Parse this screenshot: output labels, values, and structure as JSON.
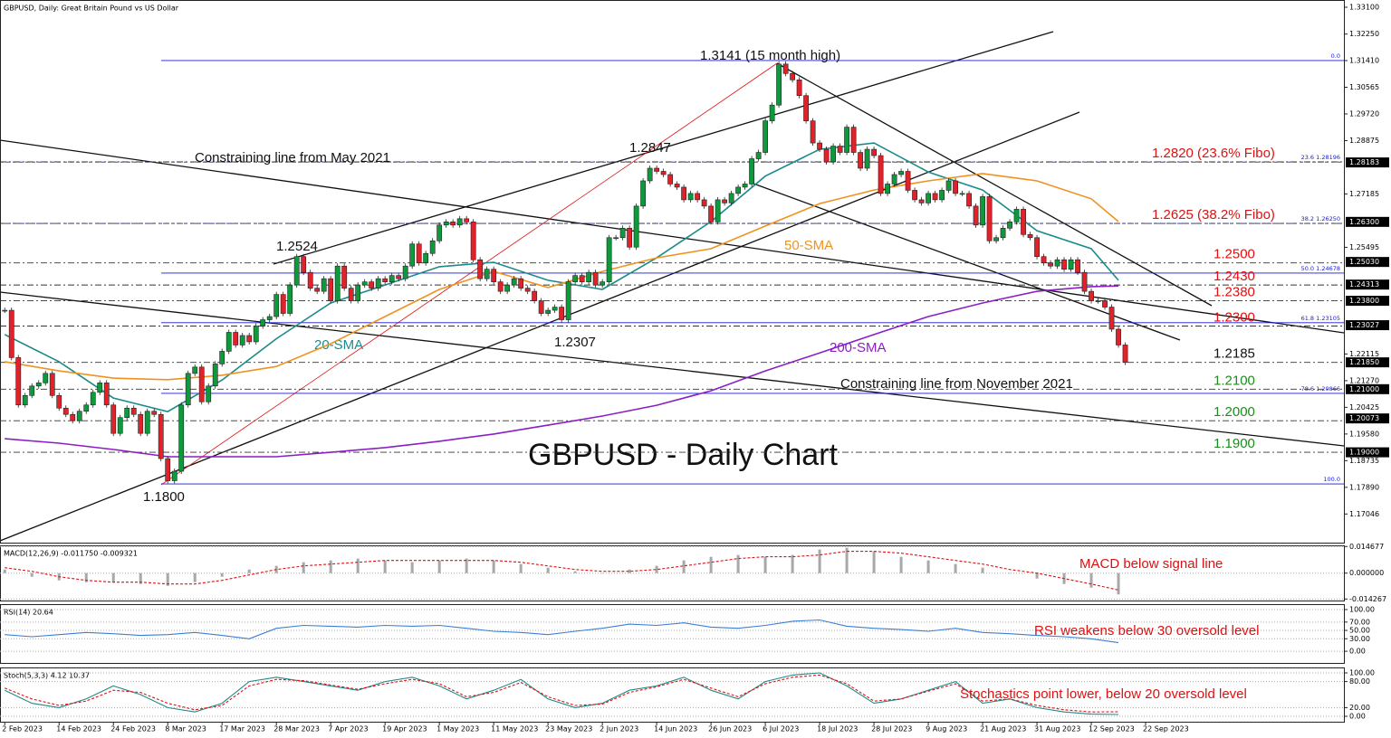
{
  "chart_data": [
    {
      "type": "candlestick",
      "header": "GBPUSD, Daily:  Great Britain Pound vs US Dollar",
      "title": "GBPUSD - Daily Chart",
      "up_color": "#0e9a3c",
      "down_color": "#e0222a",
      "values": [
        1.235,
        1.22,
        1.205,
        1.208,
        1.211,
        1.212,
        1.215,
        1.208,
        1.204,
        1.202,
        1.2,
        1.203,
        1.205,
        1.209,
        1.212,
        1.205,
        1.196,
        1.201,
        1.204,
        1.202,
        1.196,
        1.203,
        1.202,
        1.188,
        1.181,
        1.184,
        1.205,
        1.215,
        1.217,
        1.206,
        1.211,
        1.218,
        1.222,
        1.228,
        1.224,
        1.227,
        1.225,
        1.23,
        1.232,
        1.233,
        1.24,
        1.234,
        1.243,
        1.252,
        1.247,
        1.242,
        1.241,
        1.245,
        1.238,
        1.249,
        1.242,
        1.238,
        1.243,
        1.244,
        1.242,
        1.245,
        1.244,
        1.246,
        1.245,
        1.249,
        1.256,
        1.25,
        1.253,
        1.257,
        1.262,
        1.263,
        1.262,
        1.264,
        1.263,
        1.251,
        1.245,
        1.248,
        1.244,
        1.241,
        1.243,
        1.245,
        1.242,
        1.241,
        1.238,
        1.234,
        1.235,
        1.236,
        1.232,
        1.244,
        1.246,
        1.244,
        1.247,
        1.243,
        1.244,
        1.258,
        1.258,
        1.261,
        1.255,
        1.268,
        1.276,
        1.28,
        1.279,
        1.278,
        1.275,
        1.274,
        1.27,
        1.272,
        1.27,
        1.268,
        1.263,
        1.27,
        1.269,
        1.272,
        1.274,
        1.275,
        1.283,
        1.285,
        1.295,
        1.3,
        1.313,
        1.31,
        1.308,
        1.303,
        1.295,
        1.288,
        1.286,
        1.282,
        1.287,
        1.285,
        1.293,
        1.285,
        1.28,
        1.286,
        1.284,
        1.272,
        1.275,
        1.278,
        1.279,
        1.273,
        1.27,
        1.269,
        1.272,
        1.27,
        1.273,
        1.276,
        1.272,
        1.272,
        1.268,
        1.262,
        1.271,
        1.257,
        1.258,
        1.261,
        1.263,
        1.267,
        1.259,
        1.258,
        1.252,
        1.25,
        1.249,
        1.251,
        1.248,
        1.251,
        1.247,
        1.241,
        1.238,
        1.238,
        1.236,
        1.229,
        1.224,
        1.2185
      ],
      "xlim": [
        -0.7,
        197.2
      ],
      "ylim": [
        1.16138,
        1.33329
      ],
      "xticks": [
        {
          "value": 0,
          "label": "2 Feb 2023"
        },
        {
          "value": 8,
          "label": "14 Feb 2023"
        },
        {
          "value": 16,
          "label": "24 Feb 2023"
        },
        {
          "value": 24,
          "label": "8 Mar 2023"
        },
        {
          "value": 32,
          "label": "17 Mar 2023"
        },
        {
          "value": 40,
          "label": "28 Mar 2023"
        },
        {
          "value": 48,
          "label": "7 Apr 2023"
        },
        {
          "value": 56,
          "label": "19 Apr 2023"
        },
        {
          "value": 64,
          "label": "1 May 2023"
        },
        {
          "value": 72,
          "label": "11 May 2023"
        },
        {
          "value": 80,
          "label": "23 May 2023"
        },
        {
          "value": 88,
          "label": "2 Jun 2023"
        },
        {
          "value": 96,
          "label": "14 Jun 2023"
        },
        {
          "value": 104,
          "label": "26 Jun 2023"
        },
        {
          "value": 112,
          "label": "6 Jul 2023"
        },
        {
          "value": 120,
          "label": "18 Jul 2023"
        },
        {
          "value": 128,
          "label": "28 Jul 2023"
        },
        {
          "value": 136,
          "label": "9 Aug 2023"
        },
        {
          "value": 144,
          "label": "21 Aug 2023"
        },
        {
          "value": 152,
          "label": "31 Aug 2023"
        },
        {
          "value": 160,
          "label": "12 Sep 2023"
        },
        {
          "value": 168,
          "label": "22 Sep 2023"
        }
      ],
      "yticks": [
        {
          "value": 1.331,
          "label": "1.33100"
        },
        {
          "value": 1.3225,
          "label": "1.32250"
        },
        {
          "value": 1.3141,
          "label": "1.31410"
        },
        {
          "value": 1.30565,
          "label": "1.30565"
        },
        {
          "value": 1.2972,
          "label": "1.29720"
        },
        {
          "value": 1.28875,
          "label": "1.28875"
        },
        {
          "value": 1.27185,
          "label": "1.27185"
        },
        {
          "value": 1.25495,
          "label": "1.25495"
        },
        {
          "value": 1.22115,
          "label": "1.22115"
        },
        {
          "value": 1.2127,
          "label": "1.21270"
        },
        {
          "value": 1.20425,
          "label": "1.20425"
        },
        {
          "value": 1.1958,
          "label": "1.19580"
        },
        {
          "value": 1.18735,
          "label": "1.18735"
        },
        {
          "value": 1.1789,
          "label": "1.17890"
        },
        {
          "value": 1.17046,
          "label": "1.17046"
        }
      ],
      "price_tags": [
        {
          "value": 1.28183,
          "label": "1.28183"
        },
        {
          "value": 1.263,
          "label": "1.26300"
        },
        {
          "value": 1.2503,
          "label": "1.25030"
        },
        {
          "value": 1.24313,
          "label": "1.24313"
        },
        {
          "value": 1.238,
          "label": "1.23800"
        },
        {
          "value": 1.23027,
          "label": "1.23027"
        },
        {
          "value": 1.2185,
          "label": "1.21850"
        },
        {
          "value": 1.21,
          "label": "1.21000"
        },
        {
          "value": 1.20073,
          "label": "1.20073"
        },
        {
          "value": 1.19,
          "label": "1.19000"
        }
      ],
      "fib_levels": [
        {
          "value": 1.3141,
          "tag": "0.0",
          "style": "solid"
        },
        {
          "value": 1.28196,
          "tag": "23.6 1.28196",
          "style": "dash"
        },
        {
          "value": 1.2625,
          "tag": "38.2 1.26250",
          "style": "dash"
        },
        {
          "value": 1.24678,
          "tag": "50.0 1.24678",
          "style": "solid"
        },
        {
          "value": 1.23105,
          "tag": "61.8 1.23105",
          "style": "solid"
        },
        {
          "value": 1.20866,
          "tag": "78.6 1.20866",
          "style": "solid"
        },
        {
          "value": 1.18,
          "tag": "100.0",
          "style": "solid"
        }
      ],
      "fib_color": "#1a1ad0",
      "levels": [
        {
          "value": 1.282,
          "label": "1.2820 (23.6% Fibo)",
          "color": "#e01010"
        },
        {
          "value": 1.2625,
          "label": "1.2625 (38.2% Fibo)",
          "color": "#e01010"
        },
        {
          "value": 1.25,
          "label": "1.2500",
          "color": "#e01010"
        },
        {
          "value": 1.243,
          "label": "1.2430",
          "color": "#e01010"
        },
        {
          "value": 1.238,
          "label": "1.2380",
          "color": "#e01010"
        },
        {
          "value": 1.23,
          "label": "1.2300",
          "color": "#e01010"
        },
        {
          "value": 1.2185,
          "label": "1.2185",
          "color": "#111111"
        },
        {
          "value": 1.21,
          "label": "1.2100",
          "color": "#1f8a1f"
        },
        {
          "value": 1.2,
          "label": "1.2000",
          "color": "#1f8a1f"
        },
        {
          "value": 1.19,
          "label": "1.1900",
          "color": "#1f8a1f"
        }
      ],
      "lines": [
        {
          "name": "20-SMA",
          "color": "#1d8a8a",
          "x": [
            0,
            8,
            16,
            24,
            32,
            40,
            48,
            56,
            64,
            72,
            80,
            88,
            96,
            104,
            112,
            120,
            128,
            136,
            144,
            152,
            160,
            164
          ],
          "values": [
            1.2273,
            1.2187,
            1.2072,
            1.2029,
            1.2129,
            1.226,
            1.2373,
            1.243,
            1.2488,
            1.2502,
            1.2445,
            1.2416,
            1.2516,
            1.2631,
            1.2775,
            1.286,
            1.288,
            1.2788,
            1.2731,
            1.2602,
            1.2545,
            1.2445
          ]
        },
        {
          "name": "50-SMA",
          "color": "#f0921e",
          "x": [
            0,
            8,
            16,
            24,
            32,
            40,
            48,
            56,
            64,
            72,
            80,
            88,
            96,
            104,
            112,
            120,
            128,
            136,
            144,
            152,
            160,
            164
          ],
          "values": [
            1.2187,
            1.2158,
            1.2135,
            1.213,
            1.2144,
            1.2172,
            1.2244,
            1.233,
            1.2416,
            1.2473,
            1.2422,
            1.2473,
            1.2516,
            1.2545,
            1.2617,
            1.2688,
            1.2731,
            1.276,
            1.2783,
            1.276,
            1.2703,
            1.2631
          ]
        },
        {
          "name": "200-SMA",
          "color": "#8a1fc4",
          "x": [
            0,
            8,
            16,
            24,
            32,
            40,
            48,
            56,
            64,
            72,
            80,
            88,
            96,
            104,
            112,
            120,
            128,
            136,
            144,
            152,
            160,
            164
          ],
          "values": [
            1.1943,
            1.1929,
            1.1909,
            1.1886,
            1.1886,
            1.1886,
            1.19,
            1.1915,
            1.1935,
            1.1958,
            1.1986,
            1.2015,
            1.2049,
            1.2095,
            1.2158,
            1.2215,
            1.2273,
            1.233,
            1.2373,
            1.241,
            1.2425,
            1.2427
          ]
        }
      ],
      "annotations": [
        "1.3141 (15 month high)",
        "1.2847",
        "1.2524",
        "1.2307",
        "1.1800",
        "Constraining line from May 2021",
        "Constraining line from November 2021"
      ]
    },
    {
      "type": "macd",
      "header": "MACD(12,26,9) -0.011750 -0.009321",
      "annotation": "MACD below signal line",
      "xlim": [
        -0.7,
        197.2
      ],
      "ylim": [
        -0.0151,
        0.0153
      ],
      "yticks": [
        {
          "value": 0.014677,
          "label": "0.014677"
        },
        {
          "value": 0,
          "label": "0.000000"
        },
        {
          "value": -0.014267,
          "label": "-0.014267"
        }
      ],
      "x": [
        0,
        4,
        8,
        12,
        16,
        20,
        24,
        28,
        32,
        36,
        40,
        44,
        48,
        52,
        56,
        60,
        64,
        68,
        72,
        76,
        80,
        84,
        88,
        92,
        96,
        100,
        104,
        108,
        112,
        116,
        120,
        124,
        128,
        132,
        136,
        140,
        144,
        148,
        152,
        156,
        160,
        164
      ],
      "series": [
        {
          "kind": "bar",
          "color": "#a8a8a8",
          "values": [
            0.002,
            -0.002,
            -0.004,
            -0.005,
            -0.005,
            -0.006,
            -0.007,
            -0.005,
            -0.002,
            0.002,
            0.004,
            0.006,
            0.007,
            0.008,
            0.007,
            0.006,
            0.007,
            0.008,
            0.007,
            0.005,
            0.003,
            0.001,
            0,
            0.002,
            0.004,
            0.007,
            0.009,
            0.01,
            0.009,
            0.01,
            0.013,
            0.014,
            0.012,
            0.009,
            0.007,
            0.005,
            0.003,
            0,
            -0.003,
            -0.006,
            -0.008,
            -0.01175
          ]
        },
        {
          "kind": "line",
          "color": "#e01010",
          "values": [
            0.003,
            0.001,
            -0.002,
            -0.004,
            -0.005,
            -0.005,
            -0.006,
            -0.006,
            -0.004,
            -0.001,
            0.002,
            0.004,
            0.005,
            0.006,
            0.007,
            0.007,
            0.007,
            0.007,
            0.007,
            0.006,
            0.004,
            0.002,
            0.001,
            0.001,
            0.002,
            0.004,
            0.006,
            0.008,
            0.009,
            0.009,
            0.01,
            0.012,
            0.012,
            0.011,
            0.009,
            0.007,
            0.005,
            0.002,
            0,
            -0.003,
            -0.006,
            -0.009321
          ]
        }
      ]
    },
    {
      "type": "line",
      "header": "RSI(14) 20.64",
      "annotation": "RSI weakens below 30 oversold level",
      "xlim": [
        -0.7,
        197.2
      ],
      "ylim": [
        -28,
        113
      ],
      "yticks": [
        {
          "value": 100,
          "label": "100.00"
        },
        {
          "value": 70,
          "label": "70.00"
        },
        {
          "value": 50,
          "label": "50.00"
        },
        {
          "value": 30,
          "label": "30.00"
        },
        {
          "value": 0,
          "label": "0.00"
        }
      ],
      "x": [
        0,
        4,
        8,
        12,
        16,
        20,
        24,
        28,
        32,
        36,
        40,
        44,
        48,
        52,
        56,
        60,
        64,
        68,
        72,
        76,
        80,
        84,
        88,
        92,
        96,
        100,
        104,
        108,
        112,
        116,
        120,
        124,
        128,
        132,
        136,
        140,
        144,
        148,
        152,
        156,
        160,
        164
      ],
      "series": [
        {
          "kind": "line",
          "color": "#3a7fd5",
          "values": [
            40,
            35,
            40,
            45,
            42,
            38,
            40,
            45,
            38,
            30,
            55,
            62,
            60,
            58,
            62,
            60,
            62,
            55,
            48,
            45,
            40,
            48,
            55,
            65,
            62,
            68,
            58,
            55,
            62,
            72,
            75,
            60,
            55,
            52,
            48,
            55,
            45,
            42,
            38,
            35,
            30,
            20.64
          ]
        }
      ]
    },
    {
      "type": "line",
      "header": "Stoch(5,3,3) 4.12 10.37",
      "annotation": "Stochastics point lower, below 20 oversold level",
      "xlim": [
        -0.7,
        197.2
      ],
      "ylim": [
        -12.5,
        112.5
      ],
      "yticks": [
        {
          "value": 100,
          "label": "100.00"
        },
        {
          "value": 80,
          "label": "80.00"
        },
        {
          "value": 20,
          "label": "20.00"
        },
        {
          "value": 0,
          "label": "0.00"
        }
      ],
      "x": [
        0,
        4,
        8,
        12,
        16,
        20,
        24,
        28,
        32,
        36,
        40,
        44,
        48,
        52,
        56,
        60,
        64,
        68,
        72,
        76,
        80,
        84,
        88,
        92,
        96,
        100,
        104,
        108,
        112,
        116,
        120,
        124,
        128,
        132,
        136,
        140,
        144,
        148,
        152,
        156,
        160,
        164
      ],
      "series": [
        {
          "kind": "line",
          "color": "#1d8a8a",
          "values": [
            60,
            30,
            20,
            40,
            70,
            50,
            20,
            10,
            30,
            80,
            90,
            80,
            70,
            60,
            80,
            90,
            70,
            40,
            60,
            85,
            40,
            20,
            30,
            60,
            70,
            90,
            60,
            40,
            80,
            95,
            100,
            70,
            30,
            40,
            60,
            80,
            30,
            40,
            20,
            10,
            5,
            4.12
          ]
        },
        {
          "kind": "dotted",
          "color": "#e01010",
          "values": [
            65,
            40,
            25,
            35,
            60,
            55,
            30,
            15,
            25,
            70,
            85,
            82,
            72,
            62,
            75,
            85,
            75,
            45,
            55,
            78,
            45,
            25,
            28,
            55,
            68,
            85,
            65,
            45,
            75,
            90,
            95,
            75,
            35,
            40,
            58,
            75,
            35,
            40,
            25,
            15,
            10,
            10.37
          ]
        }
      ]
    }
  ]
}
